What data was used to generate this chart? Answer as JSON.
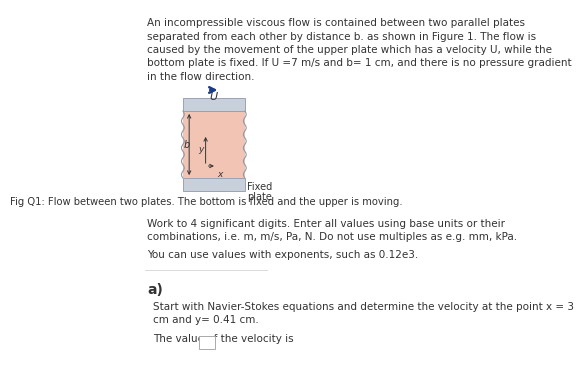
{
  "title_text_lines": [
    "An incompressible viscous flow is contained between two parallel plates",
    "separated from each other by distance b. as shown in Figure 1. The flow is",
    "caused by the movement of the upper plate which has a velocity U, while the",
    "bottom plate is fixed. If U =7 m/s and b= 1 cm, and there is no pressure gradient",
    "in the flow direction."
  ],
  "italic_words": [
    "U",
    "U",
    "U",
    "U,",
    "b="
  ],
  "fig_caption": "Fig Q1: Flow between two plates. The bottom is fixed and the upper is moving.",
  "work_note_lines": [
    "Work to 4 significant digits. Enter all values using base units or their",
    "combinations, i.e. m, m/s, Pa, N. Do not use multiples as e.g. mm, kPa."
  ],
  "exp_note": "You can use values with exponents, such as 0.12e3.",
  "part_a_label": "a)",
  "part_a_text_lines": [
    "Start with Navier-Stokes equations and determine the velocity at the point x = 3",
    "cm and y= 0.41 cm."
  ],
  "answer_label": "The value of the velocity is",
  "bg_color": "#ffffff",
  "text_color": "#333333",
  "plate_fill": "#f2c4b4",
  "plate_border": "#c0c8d8",
  "arrow_color": "#1a3a8a",
  "fixed_plate_color": "#c8d0dc",
  "label_b": "b",
  "label_y": "y",
  "label_x": "x",
  "label_U": "U",
  "fixed_label_1": "Fixed",
  "fixed_label_2": "plate",
  "divider_color": "#cccccc"
}
